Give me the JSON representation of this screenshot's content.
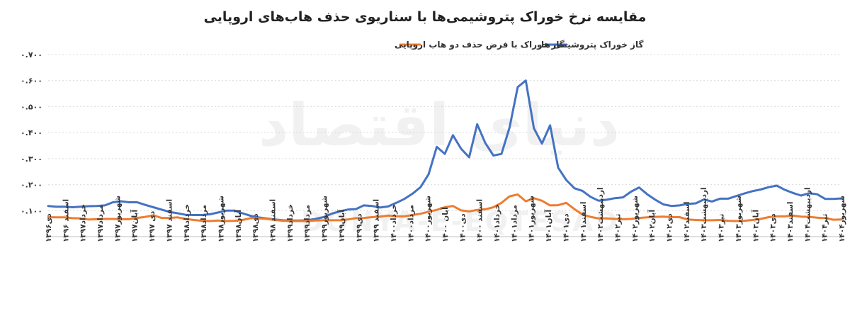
{
  "chart_data": {
    "type": "line",
    "title": "مقایسه نرخ خوراک پتروشیمی‌ها با سناریوی حذف هاب‌های اروپایی",
    "ylim": [
      0,
      0.7
    ],
    "yticks": [
      "۰.۷۰۰",
      "۰.۶۰۰",
      "۰.۵۰۰",
      "۰.۴۰۰",
      "۰.۳۰۰",
      "۰.۲۰۰",
      "۰.۱۰۰"
    ],
    "ytick_values": [
      0.7,
      0.6,
      0.5,
      0.4,
      0.3,
      0.2,
      0.1
    ],
    "grid": true,
    "legend_position": "top",
    "watermark": {
      "script": "دنیای اقتصاد",
      "latin": "DONYA-E-EQTESAD"
    },
    "x_labels": [
      "دی۱۳۹۶",
      "اسفند ۱۳۹۶",
      "خرداد۱۳۹۷",
      "مرداد۱۳۹۷",
      "شهریور۱۳۹۷",
      "آبان۱۳۹۷",
      "دی ۱۳۹۷",
      "اسفند ۱۳۹۷",
      "خرداد۱۳۹۸",
      "مرداد۱۳۹۸",
      "شهریور۱۳۹۸",
      "آبان۱۳۹۸",
      "دی۱۳۹۸",
      "اسفند ۱۳۹۸",
      "خرداد۱۳۹۹",
      "مرداد۱۳۹۹",
      "شهریور۱۳۹۹",
      "آبان۱۳۹۹",
      "دی۱۳۹۹",
      "اسفند ۱۳۹۹",
      "خرداد۱۴۰۰",
      "مرداد۱۴۰۰",
      "شهریور۱۴۰۰",
      "آبان ۱۴۰۰",
      "دی۱۴۰۰",
      "اسفند ۱۴۰۰",
      "خرداد۱۴۰۱",
      "مرداد۱۴۰۱",
      "شهریور۱۴۰۱",
      "آبان۱۴۰۱",
      "دی۱۴۰۱",
      "اسفند۱۴۰۱",
      "اردیبهشت۱۴۰۲",
      "تیر۱۴۰۲",
      "شهریور۱۴۰۲",
      "آبان۱۴۰۲",
      "دی۱۴۰۲",
      "اسفند۱۴۰۲",
      "اردیبهشت۱۴۰۳",
      "تیر۱۴۰۳",
      "شهریور۱۴۰۳",
      "آبان۱۴۰۳",
      "دی۱۴۰۳",
      "اسفند۱۴۰۳",
      "اردیبهشت۱۴۰۴",
      "تیر۱۴۰۴",
      "شهریور۱۴۰۴"
    ],
    "series": [
      {
        "name": "گاز خوراک پتروشیمی ها",
        "color": "#4472C4",
        "values": [
          0.118,
          0.115,
          0.115,
          0.113,
          0.115,
          0.117,
          0.118,
          0.12,
          0.132,
          0.136,
          0.132,
          0.132,
          0.122,
          0.113,
          0.104,
          0.095,
          0.09,
          0.084,
          0.083,
          0.083,
          0.086,
          0.093,
          0.1,
          0.1,
          0.09,
          0.08,
          0.074,
          0.07,
          0.066,
          0.063,
          0.062,
          0.062,
          0.063,
          0.068,
          0.075,
          0.088,
          0.097,
          0.104,
          0.106,
          0.12,
          0.118,
          0.112,
          0.116,
          0.13,
          0.145,
          0.165,
          0.19,
          0.24,
          0.345,
          0.318,
          0.39,
          0.338,
          0.305,
          0.432,
          0.36,
          0.312,
          0.318,
          0.42,
          0.575,
          0.6,
          0.417,
          0.358,
          0.428,
          0.265,
          0.218,
          0.186,
          0.176,
          0.153,
          0.138,
          0.142,
          0.148,
          0.151,
          0.173,
          0.189,
          0.163,
          0.142,
          0.124,
          0.118,
          0.12,
          0.126,
          0.128,
          0.143,
          0.135,
          0.146,
          0.146,
          0.156,
          0.166,
          0.175,
          0.181,
          0.19,
          0.196,
          0.18,
          0.168,
          0.158,
          0.167,
          0.163,
          0.145,
          0.145,
          0.147
        ]
      },
      {
        "name": "گاز خوراک با فرض حذف دو هاب اروپایی",
        "color": "#ED7D31",
        "values": [
          0.075,
          0.074,
          0.074,
          0.071,
          0.07,
          0.066,
          0.067,
          0.068,
          0.068,
          0.067,
          0.067,
          0.072,
          0.076,
          0.082,
          0.072,
          0.072,
          0.074,
          0.068,
          0.064,
          0.061,
          0.06,
          0.062,
          0.06,
          0.061,
          0.064,
          0.071,
          0.07,
          0.068,
          0.064,
          0.061,
          0.06,
          0.06,
          0.06,
          0.062,
          0.063,
          0.063,
          0.063,
          0.066,
          0.071,
          0.072,
          0.075,
          0.077,
          0.081,
          0.078,
          0.078,
          0.083,
          0.088,
          0.096,
          0.103,
          0.113,
          0.118,
          0.101,
          0.097,
          0.103,
          0.105,
          0.113,
          0.13,
          0.155,
          0.162,
          0.136,
          0.148,
          0.138,
          0.12,
          0.121,
          0.13,
          0.106,
          0.085,
          0.076,
          0.07,
          0.07,
          0.068,
          0.067,
          0.068,
          0.072,
          0.074,
          0.076,
          0.077,
          0.075,
          0.075,
          0.066,
          0.064,
          0.063,
          0.063,
          0.064,
          0.061,
          0.06,
          0.061,
          0.064,
          0.068,
          0.075,
          0.078,
          0.078,
          0.081,
          0.077,
          0.076,
          0.073,
          0.071,
          0.065,
          0.066
        ]
      }
    ]
  }
}
